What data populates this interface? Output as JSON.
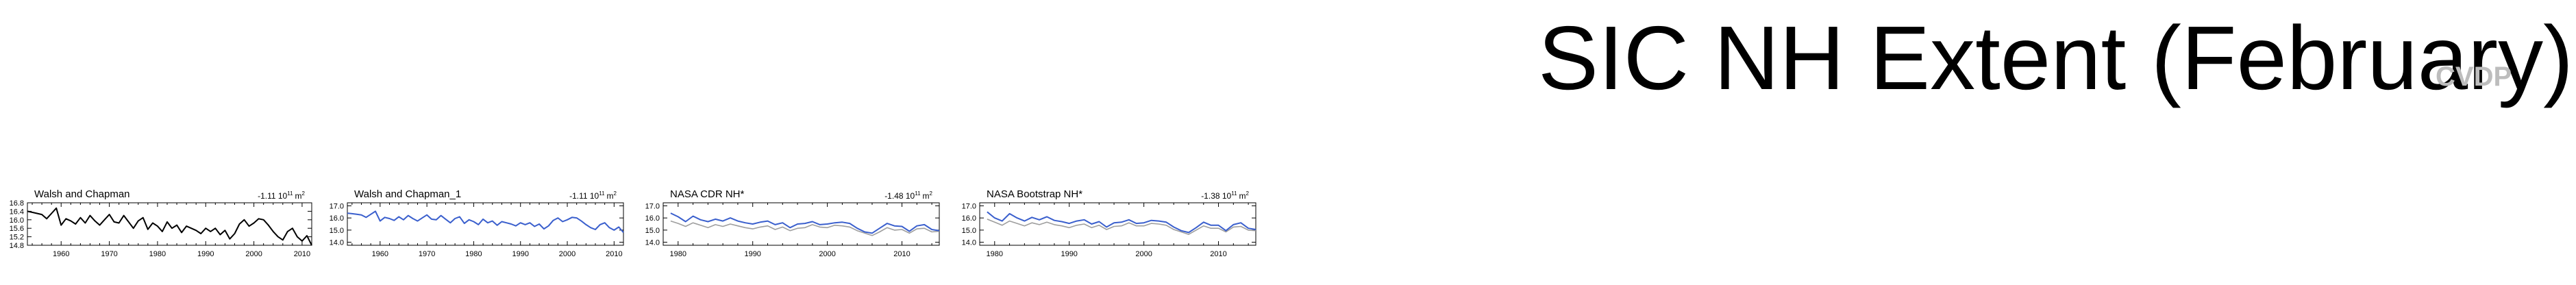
{
  "page": {
    "title": "SIC NH Extent (February)",
    "watermark": "CVDP"
  },
  "colors": {
    "black": "#000000",
    "blue": "#3a5fcd",
    "gray": "#9e9e9e"
  },
  "chart_data": [
    {
      "type": "line",
      "title": "Walsh and Chapman",
      "trend": "-1.11 10",
      "trend_exp": "11",
      "trend_unit": "m",
      "trend_unit_exp": "2",
      "xlim": [
        1953,
        2012
      ],
      "ylim": [
        14.8,
        16.8
      ],
      "xticks": [
        1960,
        1970,
        1980,
        1990,
        2000,
        2010
      ],
      "yticks": [
        14.8,
        15.2,
        15.6,
        16.0,
        16.4,
        16.8
      ],
      "ytick_labels": [
        "14.8",
        "15.2",
        "15.6",
        "16.0",
        "16.4",
        "16.8"
      ],
      "series": [
        {
          "color": "black",
          "x": [
            1953,
            1954,
            1955,
            1956,
            1957,
            1958,
            1959,
            1960,
            1961,
            1962,
            1963,
            1964,
            1965,
            1966,
            1967,
            1968,
            1969,
            1970,
            1971,
            1972,
            1973,
            1974,
            1975,
            1976,
            1977,
            1978,
            1979,
            1980,
            1981,
            1982,
            1983,
            1984,
            1985,
            1986,
            1987,
            1988,
            1989,
            1990,
            1991,
            1992,
            1993,
            1994,
            1995,
            1996,
            1997,
            1998,
            1999,
            2000,
            2001,
            2002,
            2003,
            2004,
            2005,
            2006,
            2007,
            2008,
            2009,
            2010,
            2011,
            2012
          ],
          "values": [
            16.4,
            16.35,
            16.3,
            16.25,
            16.05,
            16.3,
            16.55,
            15.75,
            16.05,
            15.95,
            15.8,
            16.1,
            15.85,
            16.2,
            15.95,
            15.75,
            16.0,
            16.25,
            15.9,
            15.85,
            16.2,
            15.9,
            15.6,
            15.95,
            16.1,
            15.55,
            15.85,
            15.7,
            15.45,
            15.9,
            15.6,
            15.75,
            15.4,
            15.7,
            15.6,
            15.5,
            15.35,
            15.6,
            15.45,
            15.6,
            15.3,
            15.5,
            15.1,
            15.35,
            15.8,
            16.0,
            15.7,
            15.85,
            16.05,
            16.0,
            15.75,
            15.45,
            15.2,
            15.05,
            15.45,
            15.6,
            15.2,
            15.0,
            15.25,
            14.8
          ]
        }
      ]
    },
    {
      "type": "line",
      "title": "Walsh and Chapman_1",
      "trend": "-1.11 10",
      "trend_exp": "11",
      "trend_unit": "m",
      "trend_unit_exp": "2",
      "xlim": [
        1953,
        2012
      ],
      "ylim": [
        13.75,
        17.25
      ],
      "xticks": [
        1960,
        1970,
        1980,
        1990,
        2000,
        2010
      ],
      "yticks": [
        14.0,
        15.0,
        16.0,
        17.0
      ],
      "ytick_labels": [
        "14.0",
        "15.0",
        "16.0",
        "17.0"
      ],
      "series": [
        {
          "color": "blue",
          "x": [
            1953,
            1954,
            1955,
            1956,
            1957,
            1958,
            1959,
            1960,
            1961,
            1962,
            1963,
            1964,
            1965,
            1966,
            1967,
            1968,
            1969,
            1970,
            1971,
            1972,
            1973,
            1974,
            1975,
            1976,
            1977,
            1978,
            1979,
            1980,
            1981,
            1982,
            1983,
            1984,
            1985,
            1986,
            1987,
            1988,
            1989,
            1990,
            1991,
            1992,
            1993,
            1994,
            1995,
            1996,
            1997,
            1998,
            1999,
            2000,
            2001,
            2002,
            2003,
            2004,
            2005,
            2006,
            2007,
            2008,
            2009,
            2010,
            2011,
            2012
          ],
          "values": [
            16.4,
            16.35,
            16.3,
            16.25,
            16.05,
            16.3,
            16.55,
            15.75,
            16.05,
            15.95,
            15.8,
            16.1,
            15.85,
            16.2,
            15.95,
            15.75,
            16.0,
            16.25,
            15.9,
            15.85,
            16.2,
            15.9,
            15.6,
            15.95,
            16.1,
            15.55,
            15.85,
            15.7,
            15.45,
            15.9,
            15.6,
            15.75,
            15.4,
            15.7,
            15.6,
            15.5,
            15.35,
            15.6,
            15.45,
            15.6,
            15.3,
            15.5,
            15.1,
            15.35,
            15.8,
            16.0,
            15.7,
            15.85,
            16.05,
            16.0,
            15.75,
            15.45,
            15.2,
            15.05,
            15.45,
            15.6,
            15.2,
            15.0,
            15.25,
            14.8
          ]
        }
      ]
    },
    {
      "type": "line",
      "title": "NASA CDR NH*",
      "trend": "-1.48 10",
      "trend_exp": "11",
      "trend_unit": "m",
      "trend_unit_exp": "2",
      "xlim": [
        1978,
        2015
      ],
      "ylim": [
        13.75,
        17.25
      ],
      "xticks": [
        1980,
        1990,
        2000,
        2010
      ],
      "yticks": [
        14.0,
        15.0,
        16.0,
        17.0
      ],
      "ytick_labels": [
        "14.0",
        "15.0",
        "16.0",
        "17.0"
      ],
      "series": [
        {
          "color": "blue",
          "x": [
            1979,
            1980,
            1981,
            1982,
            1983,
            1984,
            1985,
            1986,
            1987,
            1988,
            1989,
            1990,
            1991,
            1992,
            1993,
            1994,
            1995,
            1996,
            1997,
            1998,
            1999,
            2000,
            2001,
            2002,
            2003,
            2004,
            2005,
            2006,
            2007,
            2008,
            2009,
            2010,
            2011,
            2012,
            2013,
            2014,
            2015
          ],
          "values": [
            16.4,
            16.1,
            15.7,
            16.15,
            15.85,
            15.7,
            15.9,
            15.75,
            16.0,
            15.75,
            15.6,
            15.5,
            15.65,
            15.75,
            15.45,
            15.6,
            15.2,
            15.5,
            15.55,
            15.7,
            15.45,
            15.5,
            15.6,
            15.65,
            15.55,
            15.15,
            14.85,
            14.75,
            15.15,
            15.55,
            15.35,
            15.3,
            14.9,
            15.35,
            15.45,
            15.05,
            14.95
          ]
        },
        {
          "color": "gray",
          "x": [
            1979,
            1980,
            1981,
            1982,
            1983,
            1984,
            1985,
            1986,
            1987,
            1988,
            1989,
            1990,
            1991,
            1992,
            1993,
            1994,
            1995,
            1996,
            1997,
            1998,
            1999,
            2000,
            2001,
            2002,
            2003,
            2004,
            2005,
            2006,
            2007,
            2008,
            2009,
            2010,
            2011,
            2012,
            2013,
            2014,
            2015
          ],
          "values": [
            15.75,
            15.55,
            15.3,
            15.6,
            15.4,
            15.2,
            15.45,
            15.3,
            15.5,
            15.35,
            15.2,
            15.1,
            15.25,
            15.35,
            15.05,
            15.25,
            14.95,
            15.15,
            15.2,
            15.45,
            15.25,
            15.2,
            15.4,
            15.35,
            15.25,
            14.95,
            14.75,
            14.55,
            14.85,
            15.2,
            15.0,
            15.05,
            14.75,
            15.1,
            15.15,
            14.85,
            14.9
          ]
        }
      ]
    },
    {
      "type": "line",
      "title": "NASA Bootstrap NH*",
      "trend": "-1.38 10",
      "trend_exp": "11",
      "trend_unit": "m",
      "trend_unit_exp": "2",
      "xlim": [
        1978,
        2015
      ],
      "ylim": [
        13.75,
        17.25
      ],
      "xticks": [
        1980,
        1990,
        2000,
        2010
      ],
      "yticks": [
        14.0,
        15.0,
        16.0,
        17.0
      ],
      "ytick_labels": [
        "14.0",
        "15.0",
        "16.0",
        "17.0"
      ],
      "series": [
        {
          "color": "blue",
          "x": [
            1979,
            1980,
            1981,
            1982,
            1983,
            1984,
            1985,
            1986,
            1987,
            1988,
            1989,
            1990,
            1991,
            1992,
            1993,
            1994,
            1995,
            1996,
            1997,
            1998,
            1999,
            2000,
            2001,
            2002,
            2003,
            2004,
            2005,
            2006,
            2007,
            2008,
            2009,
            2010,
            2011,
            2012,
            2013,
            2014,
            2015
          ],
          "values": [
            16.5,
            16.0,
            15.75,
            16.35,
            16.0,
            15.75,
            16.05,
            15.85,
            16.1,
            15.8,
            15.7,
            15.55,
            15.75,
            15.85,
            15.5,
            15.7,
            15.25,
            15.6,
            15.65,
            15.85,
            15.55,
            15.6,
            15.8,
            15.75,
            15.65,
            15.25,
            14.95,
            14.8,
            15.2,
            15.65,
            15.4,
            15.4,
            14.95,
            15.45,
            15.6,
            15.15,
            15.05
          ]
        },
        {
          "color": "gray",
          "x": [
            1979,
            1980,
            1981,
            1982,
            1983,
            1984,
            1985,
            1986,
            1987,
            1988,
            1989,
            1990,
            1991,
            1992,
            1993,
            1994,
            1995,
            1996,
            1997,
            1998,
            1999,
            2000,
            2001,
            2002,
            2003,
            2004,
            2005,
            2006,
            2007,
            2008,
            2009,
            2010,
            2011,
            2012,
            2013,
            2014,
            2015
          ],
          "values": [
            15.9,
            15.65,
            15.4,
            15.75,
            15.55,
            15.35,
            15.6,
            15.45,
            15.65,
            15.45,
            15.35,
            15.2,
            15.4,
            15.5,
            15.2,
            15.4,
            15.05,
            15.3,
            15.35,
            15.6,
            15.35,
            15.35,
            15.55,
            15.5,
            15.4,
            15.05,
            14.85,
            14.65,
            15.0,
            15.35,
            15.15,
            15.15,
            14.85,
            15.25,
            15.3,
            15.0,
            14.95
          ]
        }
      ]
    }
  ]
}
